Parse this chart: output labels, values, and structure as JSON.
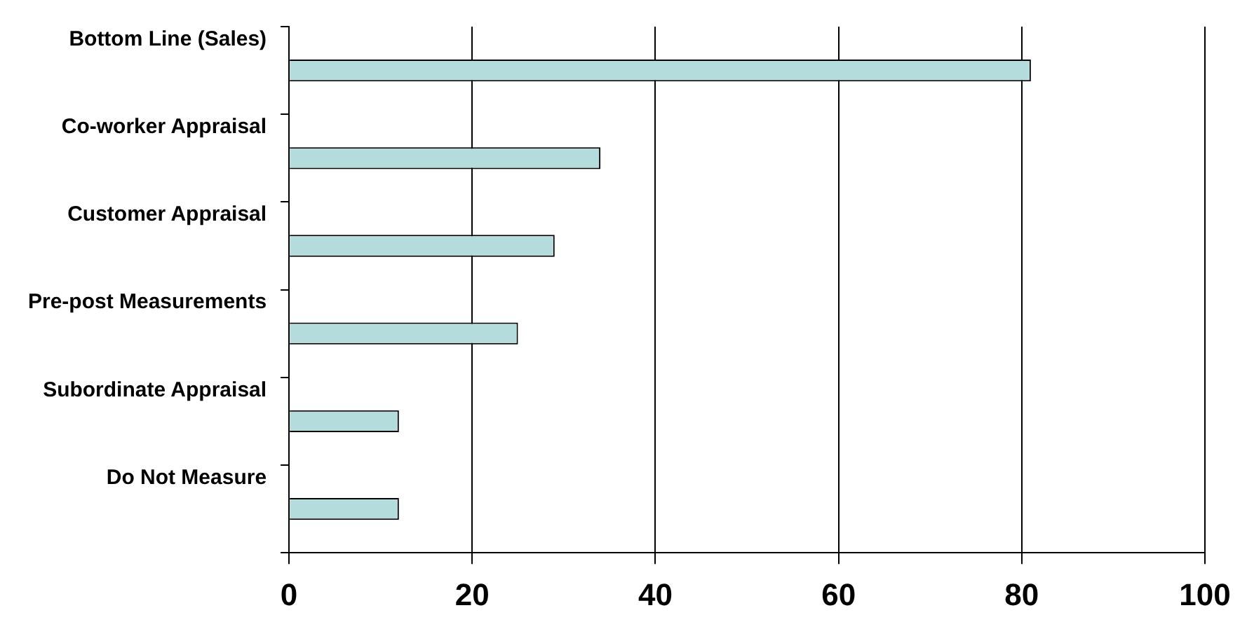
{
  "chart_data": {
    "type": "bar",
    "orientation": "horizontal",
    "categories": [
      "Bottom Line (Sales)",
      "Co-worker Appraisal",
      "Customer Appraisal",
      "Pre-post Measurements",
      "Subordinate Appraisal",
      "Do Not Measure"
    ],
    "values": [
      81,
      34,
      29,
      25,
      12,
      12
    ],
    "color": "#b4dcdc",
    "xlim": [
      0,
      100
    ],
    "xticks": [
      0,
      20,
      40,
      60,
      80,
      100
    ],
    "grid": "x"
  }
}
